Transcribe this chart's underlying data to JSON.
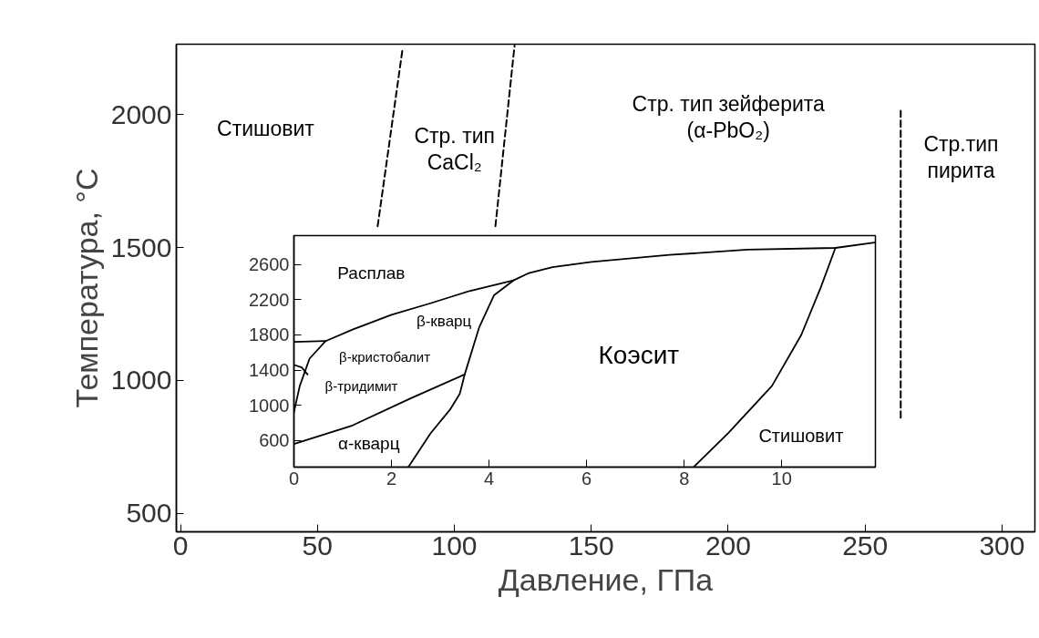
{
  "chart_data": [
    {
      "type": "line",
      "xlabel": "Давление, ГПа",
      "ylabel": "Температура, °C",
      "xlim": [
        -1.5,
        312
      ],
      "ylim": [
        430,
        2265
      ],
      "xticks": [
        0,
        50,
        100,
        150,
        200,
        250,
        300
      ],
      "yticks": [
        500,
        1000,
        1500,
        2000
      ],
      "line_style": "dashed",
      "series": [
        {
          "color": "#000000",
          "x": [
            72,
            81
          ],
          "values": [
            1580,
            2240
          ]
        },
        {
          "color": "#000000",
          "x": [
            115,
            122
          ],
          "values": [
            1580,
            2260
          ]
        },
        {
          "color": "#000000",
          "x": [
            263,
            263
          ],
          "values": [
            860,
            2015
          ]
        }
      ],
      "annotations": [
        "Стишовит",
        "Стр. тип\nCaCl₂",
        "Стр. тип зейферита\n(α-PbO₂)",
        "Стр.тип\nпирита"
      ]
    },
    {
      "type": "line",
      "xlim": [
        0,
        11.92
      ],
      "ylim": [
        296,
        2930
      ],
      "xticks": [
        0,
        2,
        4,
        6,
        8,
        10
      ],
      "yticks": [
        600,
        1000,
        1400,
        1800,
        2200,
        2600
      ],
      "series": [
        {
          "color": "#000000",
          "x": [
            0,
            0.65,
            1.2,
            2.0,
            2.8,
            3.6,
            4.5,
            4.8,
            5.3,
            6.1,
            7.7,
            9.3,
            11.1,
            11.9
          ],
          "values": [
            1720,
            1730,
            1860,
            2030,
            2160,
            2300,
            2420,
            2500,
            2570,
            2630,
            2710,
            2770,
            2790,
            2850
          ]
        },
        {
          "color": "#000000",
          "x": [
            0,
            0.12,
            0.32,
            0.65
          ],
          "values": [
            920,
            1220,
            1530,
            1730
          ]
        },
        {
          "color": "#000000",
          "x": [
            0,
            0.16,
            0.28
          ],
          "values": [
            1460,
            1430,
            1350
          ]
        },
        {
          "color": "#000000",
          "x": [
            0,
            1.2,
            2.4,
            3.5
          ],
          "values": [
            560,
            770,
            1080,
            1350
          ]
        },
        {
          "color": "#000000",
          "x": [
            2.35,
            2.8,
            3.2,
            3.4,
            3.5,
            3.8,
            4.1,
            4.5
          ],
          "values": [
            300,
            680,
            950,
            1130,
            1350,
            1890,
            2250,
            2420
          ]
        },
        {
          "color": "#000000",
          "x": [
            8.2,
            8.9,
            9.8,
            10.4,
            10.8,
            11.1
          ],
          "values": [
            300,
            680,
            1220,
            1800,
            2340,
            2790
          ]
        }
      ],
      "annotations": [
        "Расплав",
        "β-кварц",
        "β-кристобалит",
        "β-тридимит",
        "Коэсит",
        "α-кварц",
        "Стишовит"
      ]
    }
  ]
}
